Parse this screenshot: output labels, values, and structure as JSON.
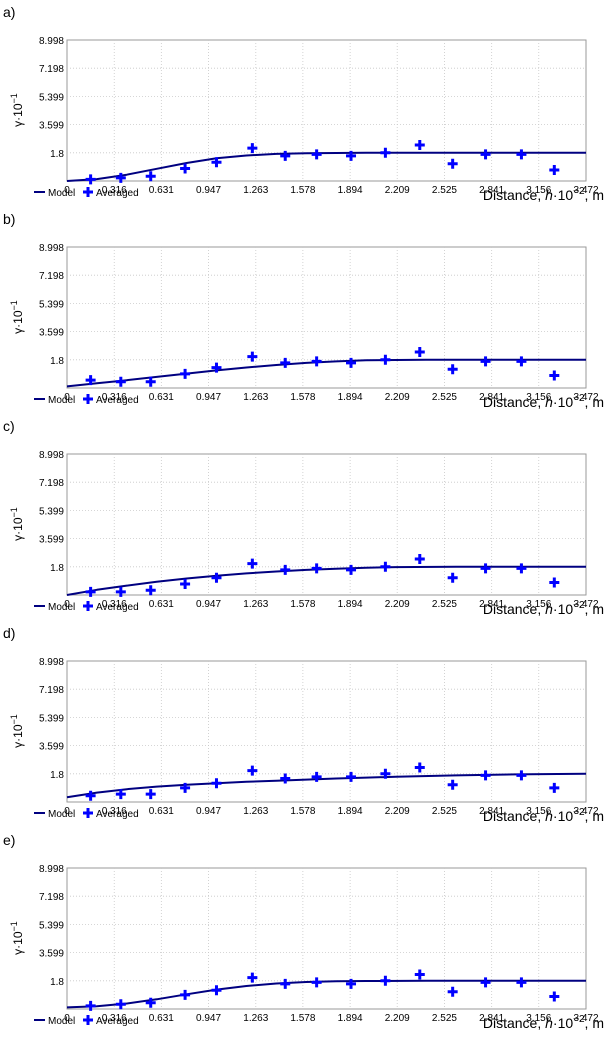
{
  "chart_data": [
    {
      "panel_label": "a)",
      "type": "scatter",
      "xlabel_prefix": "Distance, ",
      "xlabel_var": "h",
      "xlabel_mid": "·10",
      "xlabel_exp": "−2",
      "xlabel_suffix": ", m",
      "ylabel_base": "γ·10",
      "ylabel_exp": "−1",
      "xticks": [
        "0",
        "0.316",
        "0.631",
        "0.947",
        "1.263",
        "1.578",
        "1.894",
        "2.209",
        "2.525",
        "2.841",
        "3.156",
        "3.472"
      ],
      "yticks": [
        "1.8",
        "3.599",
        "5.399",
        "7.198",
        "8.998"
      ],
      "xlim": [
        0,
        3.472
      ],
      "ylim": [
        0,
        8.998
      ],
      "grid": true,
      "legend": [
        "Model",
        "Averaged"
      ],
      "legend_position": "bottom-left",
      "colors": {
        "model": "#000080",
        "averaged": "#0000ff"
      },
      "series": [
        {
          "name": "Model",
          "kind": "line",
          "x": [
            0.0,
            0.2,
            0.4,
            0.6,
            0.8,
            1.0,
            1.2,
            1.4,
            1.6,
            1.8,
            2.0,
            2.4,
            3.0,
            3.472
          ],
          "y": [
            0.0,
            0.12,
            0.4,
            0.78,
            1.15,
            1.45,
            1.63,
            1.73,
            1.77,
            1.79,
            1.8,
            1.8,
            1.8,
            1.8
          ]
        },
        {
          "name": "Averaged",
          "kind": "scatter",
          "x": [
            0.158,
            0.36,
            0.56,
            0.79,
            1.0,
            1.24,
            1.46,
            1.67,
            1.9,
            2.13,
            2.36,
            2.58,
            2.8,
            3.04,
            3.26
          ],
          "y": [
            0.1,
            0.2,
            0.3,
            0.8,
            1.2,
            2.1,
            1.6,
            1.7,
            1.6,
            1.8,
            2.3,
            1.1,
            1.7,
            1.7,
            0.7
          ]
        }
      ]
    },
    {
      "panel_label": "b)",
      "type": "scatter",
      "xlabel_prefix": "Distance, ",
      "xlabel_var": "h",
      "xlabel_mid": "·10",
      "xlabel_exp": "−2",
      "xlabel_suffix": ", m",
      "ylabel_base": "γ·10",
      "ylabel_exp": "−1",
      "xticks": [
        "0",
        "0.316",
        "0.631",
        "0.947",
        "1.263",
        "1.578",
        "1.894",
        "2.209",
        "2.525",
        "2.841",
        "3.156",
        "3.472"
      ],
      "yticks": [
        "1.8",
        "3.599",
        "5.399",
        "7.198",
        "8.998"
      ],
      "xlim": [
        0,
        3.472
      ],
      "ylim": [
        0,
        8.998
      ],
      "grid": true,
      "legend": [
        "Model",
        "Averaged"
      ],
      "legend_position": "bottom-left",
      "colors": {
        "model": "#000080",
        "averaged": "#0000ff"
      },
      "series": [
        {
          "name": "Model",
          "kind": "line",
          "x": [
            0.0,
            0.2,
            0.4,
            0.6,
            0.8,
            1.0,
            1.2,
            1.4,
            1.6,
            1.8,
            2.0,
            2.4,
            3.0,
            3.472
          ],
          "y": [
            0.1,
            0.3,
            0.5,
            0.71,
            0.92,
            1.12,
            1.31,
            1.47,
            1.6,
            1.7,
            1.77,
            1.8,
            1.8,
            1.8
          ]
        },
        {
          "name": "Averaged",
          "kind": "scatter",
          "x": [
            0.158,
            0.36,
            0.56,
            0.79,
            1.0,
            1.24,
            1.46,
            1.67,
            1.9,
            2.13,
            2.36,
            2.58,
            2.8,
            3.04,
            3.26
          ],
          "y": [
            0.5,
            0.4,
            0.4,
            0.9,
            1.3,
            2.0,
            1.6,
            1.7,
            1.6,
            1.8,
            2.3,
            1.2,
            1.7,
            1.7,
            0.8
          ]
        }
      ]
    },
    {
      "panel_label": "c)",
      "type": "scatter",
      "xlabel_prefix": "Distance, ",
      "xlabel_var": "h",
      "xlabel_mid": "·10",
      "xlabel_exp": "−2",
      "xlabel_suffix": ", m",
      "ylabel_base": "γ·10",
      "ylabel_exp": "−1",
      "xticks": [
        "0",
        "0.316",
        "0.631",
        "0.947",
        "1.263",
        "1.578",
        "1.894",
        "2.209",
        "2.525",
        "2.841",
        "3.156",
        "3.472"
      ],
      "yticks": [
        "1.8",
        "3.599",
        "5.399",
        "7.198",
        "8.998"
      ],
      "xlim": [
        0,
        3.472
      ],
      "ylim": [
        0,
        8.998
      ],
      "grid": true,
      "legend": [
        "Model",
        "Averaged"
      ],
      "legend_position": "bottom-left",
      "colors": {
        "model": "#000080",
        "averaged": "#0000ff"
      },
      "series": [
        {
          "name": "Model",
          "kind": "line",
          "x": [
            0.0,
            0.2,
            0.4,
            0.6,
            0.8,
            1.0,
            1.2,
            1.4,
            1.6,
            1.8,
            2.0,
            2.2,
            2.6,
            3.0,
            3.472
          ],
          "y": [
            0.0,
            0.33,
            0.6,
            0.84,
            1.05,
            1.23,
            1.38,
            1.5,
            1.6,
            1.68,
            1.74,
            1.78,
            1.8,
            1.8,
            1.8
          ]
        },
        {
          "name": "Averaged",
          "kind": "scatter",
          "x": [
            0.158,
            0.36,
            0.56,
            0.79,
            1.0,
            1.24,
            1.46,
            1.67,
            1.9,
            2.13,
            2.36,
            2.58,
            2.8,
            3.04,
            3.26
          ],
          "y": [
            0.2,
            0.2,
            0.3,
            0.7,
            1.1,
            2.0,
            1.6,
            1.7,
            1.6,
            1.8,
            2.3,
            1.1,
            1.7,
            1.7,
            0.8
          ]
        }
      ]
    },
    {
      "panel_label": "d)",
      "type": "scatter",
      "xlabel_prefix": "Distance, ",
      "xlabel_var": "h",
      "xlabel_mid": "·10",
      "xlabel_exp": "−2",
      "xlabel_suffix": ", m",
      "ylabel_base": "γ·10",
      "ylabel_exp": "−1",
      "xticks": [
        "0",
        "0.316",
        "0.631",
        "0.947",
        "1.263",
        "1.578",
        "1.894",
        "2.209",
        "2.525",
        "2.841",
        "3.156",
        "3.472"
      ],
      "yticks": [
        "1.8",
        "3.599",
        "5.399",
        "7.198",
        "8.998"
      ],
      "xlim": [
        0,
        3.472
      ],
      "ylim": [
        0,
        8.998
      ],
      "grid": true,
      "legend": [
        "Model",
        "Averaged"
      ],
      "legend_position": "bottom-left",
      "colors": {
        "model": "#000080",
        "averaged": "#0000ff"
      },
      "series": [
        {
          "name": "Model",
          "kind": "line",
          "x": [
            0.0,
            0.2,
            0.4,
            0.6,
            0.8,
            1.0,
            1.2,
            1.4,
            1.6,
            1.8,
            2.0,
            2.2,
            2.6,
            3.0,
            3.472
          ],
          "y": [
            0.3,
            0.6,
            0.82,
            0.98,
            1.1,
            1.2,
            1.29,
            1.36,
            1.43,
            1.5,
            1.56,
            1.61,
            1.7,
            1.76,
            1.8
          ]
        },
        {
          "name": "Averaged",
          "kind": "scatter",
          "x": [
            0.158,
            0.36,
            0.56,
            0.79,
            1.0,
            1.24,
            1.46,
            1.67,
            1.9,
            2.13,
            2.36,
            2.58,
            2.8,
            3.04,
            3.26
          ],
          "y": [
            0.4,
            0.5,
            0.5,
            0.9,
            1.2,
            2.0,
            1.5,
            1.6,
            1.6,
            1.8,
            2.2,
            1.1,
            1.7,
            1.7,
            0.9
          ]
        }
      ]
    },
    {
      "panel_label": "e)",
      "type": "scatter",
      "xlabel_prefix": "Distance, ",
      "xlabel_var": "h",
      "xlabel_mid": "·10",
      "xlabel_exp": "−2",
      "xlabel_suffix": ", m",
      "ylabel_base": "γ·10",
      "ylabel_exp": "−1",
      "xticks": [
        "0",
        "0.316",
        "0.631",
        "0.947",
        "1.263",
        "1.578",
        "1.894",
        "2.209",
        "2.525",
        "2.841",
        "3.156",
        "3.472"
      ],
      "yticks": [
        "1.8",
        "3.599",
        "5.399",
        "7.198",
        "8.998"
      ],
      "xlim": [
        0,
        3.472
      ],
      "ylim": [
        0,
        8.998
      ],
      "grid": true,
      "legend": [
        "Model",
        "Averaged"
      ],
      "legend_position": "bottom-left",
      "colors": {
        "model": "#000080",
        "averaged": "#0000ff"
      },
      "series": [
        {
          "name": "Model",
          "kind": "line",
          "x": [
            0.0,
            0.2,
            0.4,
            0.6,
            0.8,
            1.0,
            1.2,
            1.4,
            1.6,
            1.8,
            2.0,
            2.4,
            3.0,
            3.472
          ],
          "y": [
            0.1,
            0.17,
            0.35,
            0.62,
            0.94,
            1.24,
            1.47,
            1.63,
            1.72,
            1.77,
            1.79,
            1.8,
            1.8,
            1.8
          ]
        },
        {
          "name": "Averaged",
          "kind": "scatter",
          "x": [
            0.158,
            0.36,
            0.56,
            0.79,
            1.0,
            1.24,
            1.46,
            1.67,
            1.9,
            2.13,
            2.36,
            2.58,
            2.8,
            3.04,
            3.26
          ],
          "y": [
            0.2,
            0.3,
            0.4,
            0.9,
            1.2,
            2.0,
            1.6,
            1.7,
            1.6,
            1.8,
            2.2,
            1.1,
            1.7,
            1.7,
            0.8
          ]
        }
      ]
    }
  ]
}
